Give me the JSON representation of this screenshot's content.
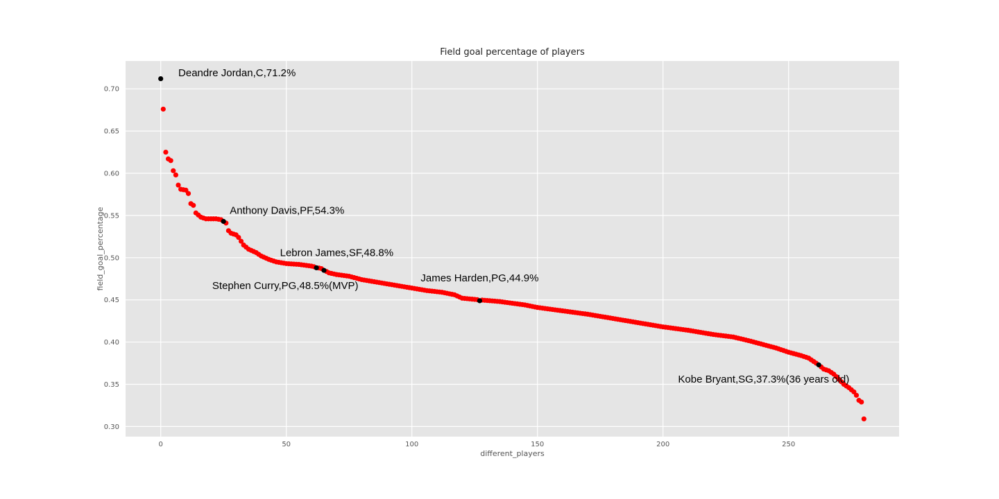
{
  "chart_data": {
    "type": "scatter",
    "title": "Field goal percentage of players",
    "xlabel": "different_players",
    "ylabel": "field_goal_percentage",
    "xlim": [
      -14,
      294
    ],
    "ylim": [
      0.288,
      0.733
    ],
    "xticks": [
      0,
      50,
      100,
      150,
      200,
      250
    ],
    "yticks": [
      0.3,
      0.35,
      0.4,
      0.45,
      0.5,
      0.55,
      0.6,
      0.65,
      0.7
    ],
    "ytick_labels": [
      "0.30",
      "0.35",
      "0.40",
      "0.45",
      "0.50",
      "0.55",
      "0.60",
      "0.65",
      "0.70"
    ],
    "grid": true,
    "background": "#e5e5e5",
    "point_color": "#ff0000",
    "highlight_color": "#000000",
    "anchors": [
      [
        1,
        0.676
      ],
      [
        2,
        0.625
      ],
      [
        3,
        0.617
      ],
      [
        4,
        0.615
      ],
      [
        5,
        0.603
      ],
      [
        6,
        0.598
      ],
      [
        7,
        0.586
      ],
      [
        8,
        0.581
      ],
      [
        10,
        0.58
      ],
      [
        11,
        0.576
      ],
      [
        12,
        0.564
      ],
      [
        13,
        0.562
      ],
      [
        14,
        0.553
      ],
      [
        16,
        0.548
      ],
      [
        18,
        0.546
      ],
      [
        20,
        0.546
      ],
      [
        22,
        0.546
      ],
      [
        24,
        0.545
      ],
      [
        26,
        0.541
      ],
      [
        27,
        0.532
      ],
      [
        28,
        0.529
      ],
      [
        30,
        0.527
      ],
      [
        31,
        0.524
      ],
      [
        33,
        0.515
      ],
      [
        35,
        0.51
      ],
      [
        38,
        0.506
      ],
      [
        40,
        0.502
      ],
      [
        43,
        0.498
      ],
      [
        46,
        0.495
      ],
      [
        50,
        0.493
      ],
      [
        55,
        0.492
      ],
      [
        60,
        0.49
      ],
      [
        64,
        0.487
      ],
      [
        67,
        0.482
      ],
      [
        70,
        0.48
      ],
      [
        75,
        0.478
      ],
      [
        80,
        0.474
      ],
      [
        90,
        0.469
      ],
      [
        96,
        0.466
      ],
      [
        100,
        0.464
      ],
      [
        106,
        0.461
      ],
      [
        112,
        0.459
      ],
      [
        117,
        0.456
      ],
      [
        120,
        0.452
      ],
      [
        127,
        0.45
      ],
      [
        135,
        0.448
      ],
      [
        145,
        0.444
      ],
      [
        150,
        0.441
      ],
      [
        160,
        0.437
      ],
      [
        170,
        0.433
      ],
      [
        180,
        0.428
      ],
      [
        190,
        0.423
      ],
      [
        200,
        0.418
      ],
      [
        210,
        0.414
      ],
      [
        220,
        0.409
      ],
      [
        228,
        0.406
      ],
      [
        235,
        0.401
      ],
      [
        240,
        0.397
      ],
      [
        245,
        0.393
      ],
      [
        250,
        0.388
      ],
      [
        255,
        0.384
      ],
      [
        258,
        0.381
      ],
      [
        260,
        0.377
      ],
      [
        262,
        0.373
      ],
      [
        264,
        0.368
      ],
      [
        266,
        0.366
      ],
      [
        268,
        0.362
      ],
      [
        270,
        0.356
      ],
      [
        272,
        0.35
      ],
      [
        274,
        0.346
      ],
      [
        276,
        0.341
      ],
      [
        277,
        0.337
      ],
      [
        278,
        0.331
      ],
      [
        279,
        0.329
      ],
      [
        280,
        0.309
      ]
    ],
    "n_points": 281,
    "highlights": [
      {
        "x": 0,
        "y": 0.712,
        "label": "Deandre Jordan,C,71.2%",
        "label_x": 7,
        "label_y": 0.715
      },
      {
        "x": 25,
        "y": 0.543,
        "label": "Anthony Davis,PF,54.3%",
        "label_x": 27.5,
        "label_y": 0.552
      },
      {
        "x": 62,
        "y": 0.488,
        "label": "Lebron James,SF,48.8%",
        "label_x": 47.5,
        "label_y": 0.502
      },
      {
        "x": 65,
        "y": 0.485,
        "label": "Stephen Curry,PG,48.5%(MVP)",
        "label_x": 20.5,
        "label_y": 0.463
      },
      {
        "x": 127,
        "y": 0.449,
        "label": "James Harden,PG,44.9%",
        "label_x": 103.5,
        "label_y": 0.472
      },
      {
        "x": 262,
        "y": 0.373,
        "label": "Kobe Bryant,SG,37.3%(36 years old)",
        "label_x": 206,
        "label_y": 0.352
      }
    ]
  }
}
